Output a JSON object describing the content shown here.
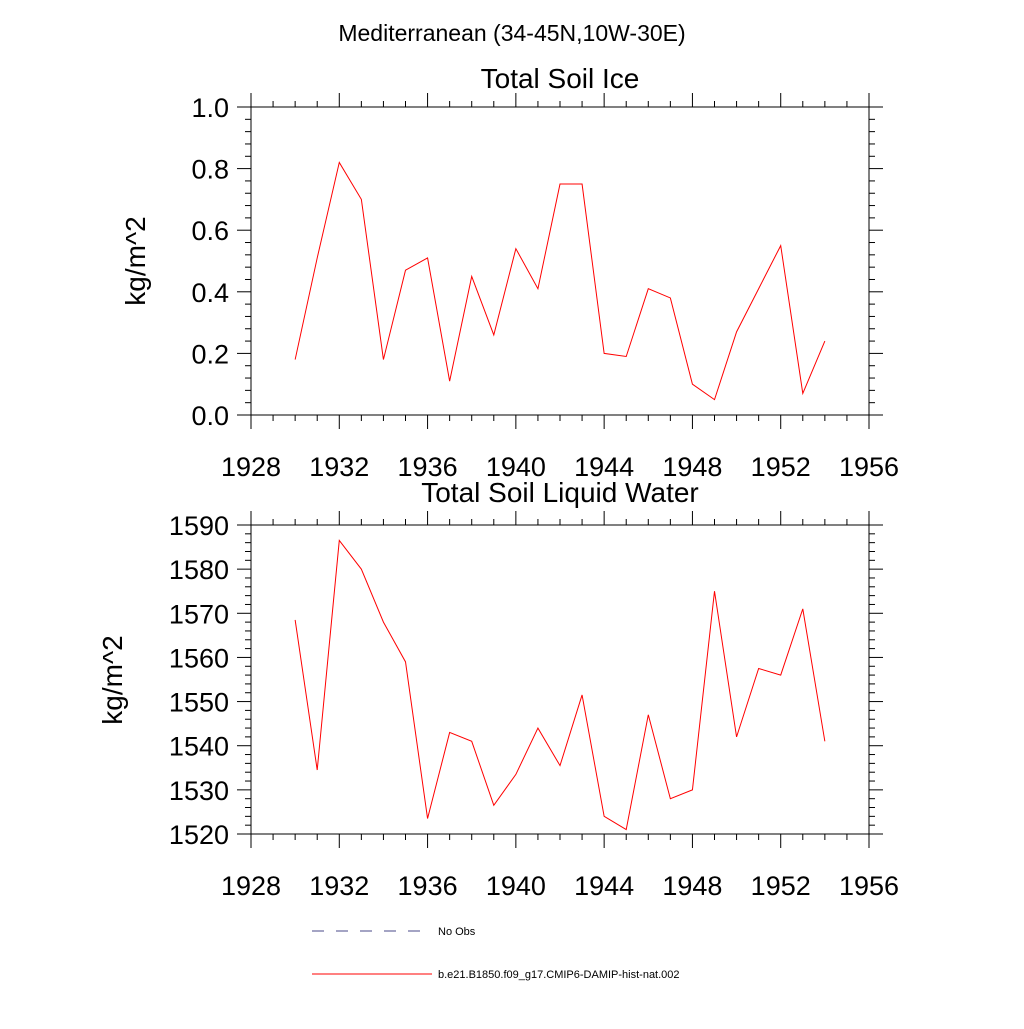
{
  "suptitle": "Mediterranean (34-45N,10W-30E)",
  "legend": {
    "items": [
      {
        "label": "No Obs",
        "color": "#4a4a8a",
        "dash": true
      },
      {
        "label": "b.e21.B1850.f09_g17.CMIP6-DAMIP-hist-nat.002",
        "color": "#ff0000",
        "dash": false
      }
    ]
  },
  "chart_data": [
    {
      "type": "line",
      "title": "Total Soil Ice",
      "xlabel": "",
      "ylabel": "kg/m^2",
      "xlim": [
        1928,
        1956
      ],
      "ylim": [
        0.0,
        1.0
      ],
      "xticks": [
        "1928",
        "1932",
        "1936",
        "1940",
        "1944",
        "1948",
        "1952",
        "1956"
      ],
      "yticks": [
        "0.0",
        "0.2",
        "0.4",
        "0.6",
        "0.8",
        "1.0"
      ],
      "series": [
        {
          "color": "#ff0000",
          "x": [
            1930,
            1931,
            1932,
            1933,
            1934,
            1935,
            1936,
            1937,
            1938,
            1939,
            1940,
            1941,
            1942,
            1943,
            1944,
            1945,
            1946,
            1947,
            1948,
            1949,
            1950,
            1951,
            1952,
            1953,
            1954
          ],
          "values": [
            0.18,
            0.51,
            0.82,
            0.7,
            0.18,
            0.47,
            0.51,
            0.11,
            0.45,
            0.26,
            0.54,
            0.41,
            0.75,
            0.75,
            0.2,
            0.19,
            0.41,
            0.38,
            0.1,
            0.05,
            0.27,
            0.41,
            0.55,
            0.07,
            0.24
          ]
        }
      ]
    },
    {
      "type": "line",
      "title": "Total Soil Liquid Water",
      "xlabel": "",
      "ylabel": "kg/m^2",
      "xlim": [
        1928,
        1956
      ],
      "ylim": [
        1520,
        1590
      ],
      "xticks": [
        "1928",
        "1932",
        "1936",
        "1940",
        "1944",
        "1948",
        "1952",
        "1956"
      ],
      "yticks": [
        "1520",
        "1530",
        "1540",
        "1550",
        "1560",
        "1570",
        "1580",
        "1590"
      ],
      "series": [
        {
          "color": "#ff0000",
          "x": [
            1930,
            1931,
            1932,
            1933,
            1934,
            1935,
            1936,
            1937,
            1938,
            1939,
            1940,
            1941,
            1942,
            1943,
            1944,
            1945,
            1946,
            1947,
            1948,
            1949,
            1950,
            1951,
            1952,
            1953,
            1954
          ],
          "values": [
            1568.5,
            1534.5,
            1586.5,
            1580,
            1568,
            1559,
            1523.5,
            1543,
            1541,
            1526.5,
            1533.5,
            1544,
            1535.5,
            1551.5,
            1524,
            1521,
            1547,
            1528,
            1530,
            1575,
            1542,
            1557.5,
            1556,
            1571,
            1541
          ]
        }
      ]
    }
  ]
}
